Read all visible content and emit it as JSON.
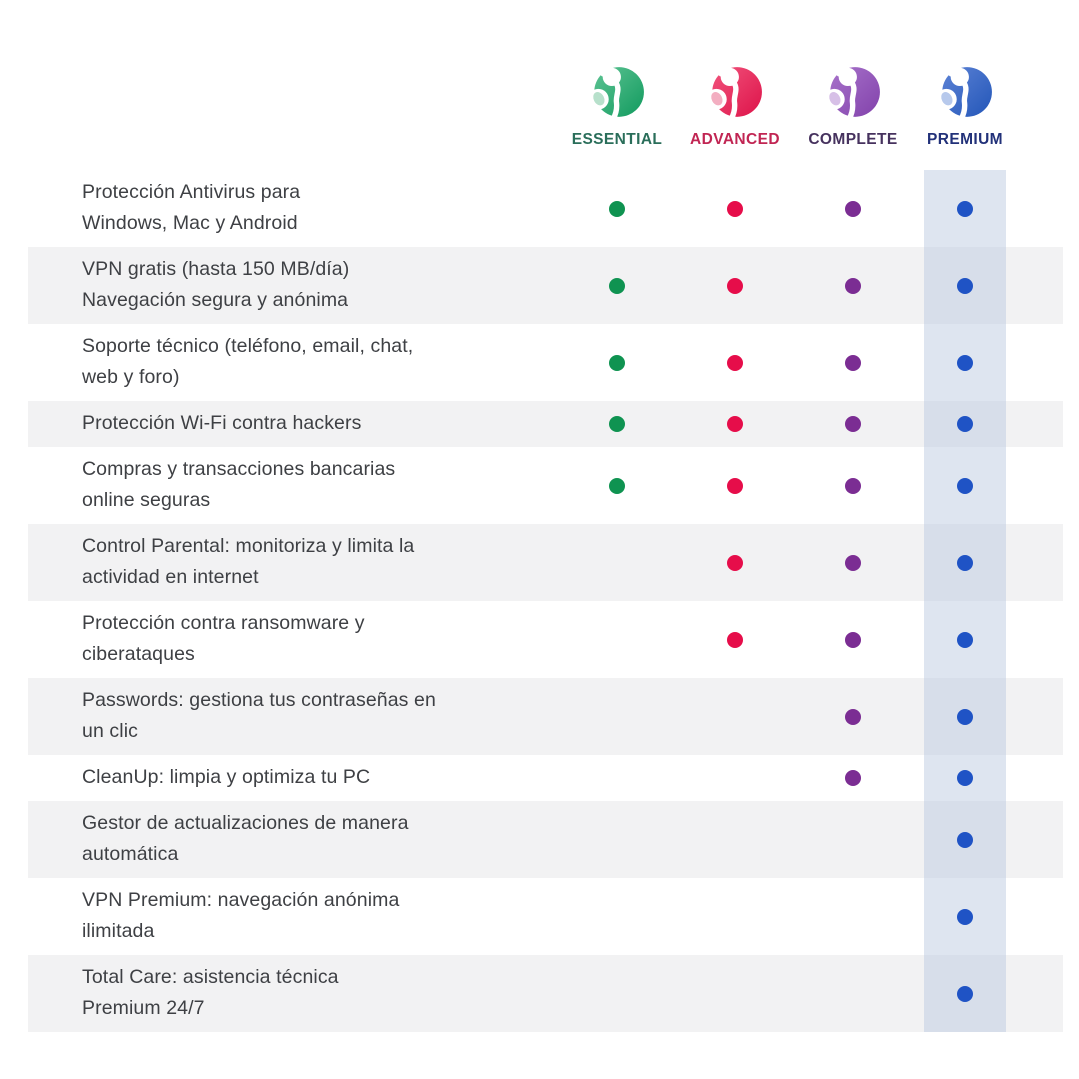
{
  "plans": [
    {
      "name": "ESSENTIAL",
      "name_color": "#2a6e5a",
      "dot_color": "#0f9351",
      "logo_main": "#119a5e",
      "logo_light": "#5ec494",
      "logo_drop": "#b7e0cb"
    },
    {
      "name": "ADVANCED",
      "name_color": "#c12553",
      "dot_color": "#e60d4a",
      "logo_main": "#dd1349",
      "logo_light": "#f2547d",
      "logo_drop": "#f3aec1"
    },
    {
      "name": "COMPLETE",
      "name_color": "#46325e",
      "dot_color": "#7b2d93",
      "logo_main": "#8242ab",
      "logo_light": "#a873cb",
      "logo_drop": "#d7c0e7"
    },
    {
      "name": "PREMIUM",
      "name_color": "#223179",
      "dot_color": "#1f53c5",
      "logo_main": "#2356b8",
      "logo_light": "#5d83d6",
      "logo_drop": "#b7c9ec"
    }
  ],
  "features": [
    {
      "text": "Protección Antivirus para\nWindows, Mac y Android",
      "included": [
        true,
        true,
        true,
        true
      ]
    },
    {
      "text": "VPN gratis (hasta 150 MB/día)\nNavegación segura y anónima",
      "included": [
        true,
        true,
        true,
        true
      ]
    },
    {
      "text": "Soporte técnico (teléfono, email, chat,\nweb y foro)",
      "included": [
        true,
        true,
        true,
        true
      ]
    },
    {
      "text": "Protección Wi-Fi contra hackers",
      "included": [
        true,
        true,
        true,
        true
      ]
    },
    {
      "text": "Compras y transacciones bancarias\nonline seguras",
      "included": [
        true,
        true,
        true,
        true
      ]
    },
    {
      "text": "Control Parental: monitoriza y limita la\nactividad en internet",
      "included": [
        false,
        true,
        true,
        true
      ]
    },
    {
      "text": "Protección contra ransomware y\nciberataques",
      "included": [
        false,
        true,
        true,
        true
      ]
    },
    {
      "text": "Passwords: gestiona tus contraseñas en\nun clic",
      "included": [
        false,
        false,
        true,
        true
      ]
    },
    {
      "text": "CleanUp: limpia y optimiza tu PC",
      "included": [
        false,
        false,
        true,
        true
      ]
    },
    {
      "text": "Gestor de actualizaciones de manera\nautomática",
      "included": [
        false,
        false,
        false,
        true
      ]
    },
    {
      "text": "VPN Premium: navegación anónima\nilimitada",
      "included": [
        false,
        false,
        false,
        true
      ]
    },
    {
      "text": "Total Care: asistencia técnica\nPremium 24/7",
      "included": [
        false,
        false,
        false,
        true
      ]
    }
  ],
  "theme": {
    "background": "#ffffff",
    "text_color": "#3e4044",
    "row_alt_bg": "#f2f2f3",
    "premium_band_on_white": "#dee5f0",
    "premium_band_on_alt": "#d7deea"
  }
}
